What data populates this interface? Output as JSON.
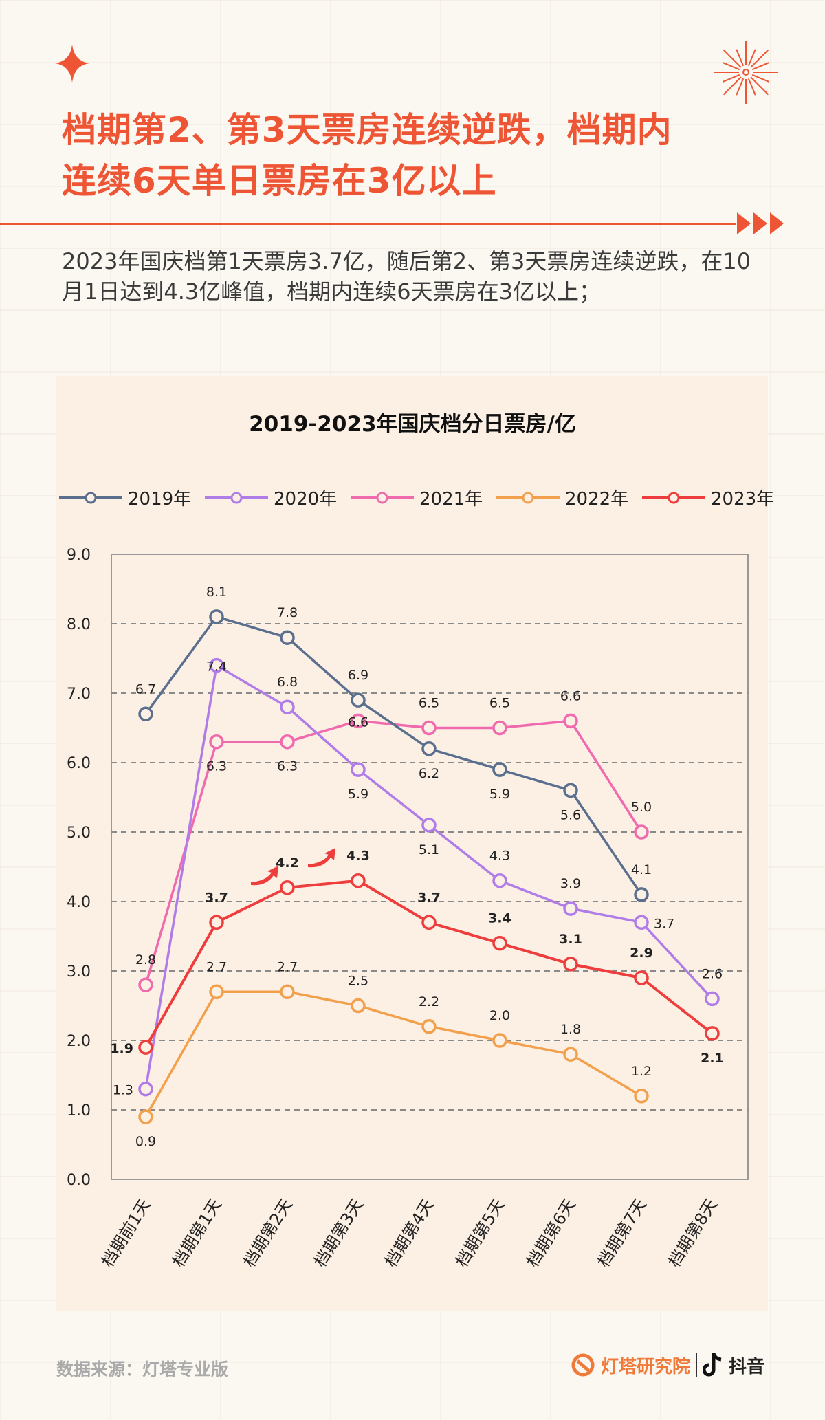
{
  "header": {
    "title_line1": "档期第2、第3天票房连续逆跌，档期内",
    "title_line2": "连续6天单日票房在3亿以上",
    "body": "2023年国庆档第1天票房3.7亿，随后第2、第3天票房连续逆跌，在10月1日达到4.3亿峰值，档期内连续6天票房在3亿以上；"
  },
  "chart_data": {
    "type": "line",
    "title": "2019-2023年国庆档分日票房/亿",
    "categories": [
      "档期前1天",
      "档期第1天",
      "档期第2天",
      "档期第3天",
      "档期第4天",
      "档期第5天",
      "档期第6天",
      "档期第7天",
      "档期第8天"
    ],
    "ylim": [
      0,
      9
    ],
    "yticks": [
      "0.0",
      "1.0",
      "2.0",
      "3.0",
      "4.0",
      "5.0",
      "6.0",
      "7.0",
      "8.0",
      "9.0"
    ],
    "grid": "horizontal dashed",
    "legend": "top",
    "series": [
      {
        "name": "2019年",
        "color": "#5a6f8e",
        "values": [
          6.7,
          8.1,
          7.8,
          6.9,
          6.2,
          5.9,
          5.6,
          4.1,
          null
        ]
      },
      {
        "name": "2020年",
        "color": "#b07de8",
        "values": [
          1.3,
          7.4,
          6.8,
          5.9,
          5.1,
          4.3,
          3.9,
          3.7,
          2.6
        ]
      },
      {
        "name": "2021年",
        "color": "#f06aae",
        "values": [
          2.8,
          6.3,
          6.3,
          6.6,
          6.5,
          6.5,
          6.6,
          5.0,
          null
        ]
      },
      {
        "name": "2022年",
        "color": "#f3a04c",
        "values": [
          0.9,
          2.7,
          2.7,
          2.5,
          2.2,
          2.0,
          1.8,
          1.2,
          null
        ]
      },
      {
        "name": "2023年",
        "color": "#ee3d3d",
        "values": [
          1.9,
          3.7,
          4.2,
          4.3,
          3.7,
          3.4,
          3.1,
          2.9,
          2.1
        ]
      }
    ]
  },
  "footer": {
    "source": "数据来源：灯塔专业版",
    "brand1": "灯塔研究院",
    "brand2": "抖音"
  },
  "colors": {
    "accent": "#ee5535",
    "panel": "#fcefe4"
  },
  "icons": [
    "sparkle-icon",
    "firework-icon",
    "triple-arrow-icon",
    "lighthouse-logo-icon",
    "douyin-logo-icon",
    "up-arrow-icon"
  ]
}
